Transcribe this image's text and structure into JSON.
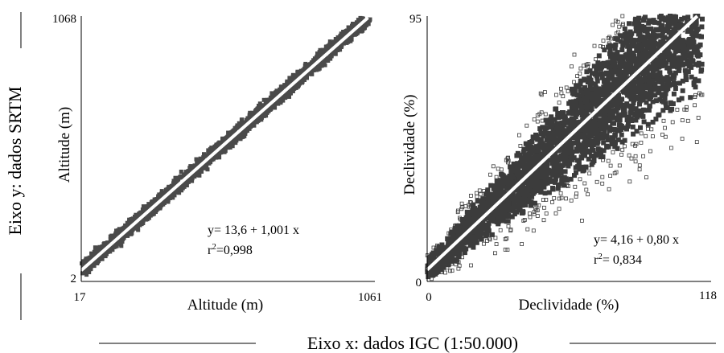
{
  "figure": {
    "y_axis_caption": "Eixo y: dados SRTM",
    "x_axis_caption": "Eixo x: dados IGC (1:50.000)"
  },
  "chart_data": [
    {
      "type": "scatter",
      "xlabel": "Altitude (m)",
      "ylabel": "Altitude (m)",
      "xlim": [
        17,
        1061
      ],
      "ylim": [
        2,
        1068
      ],
      "x_ticks": [
        "17",
        "1061"
      ],
      "y_ticks": [
        "2",
        "1068"
      ],
      "points_color": "#4a4a4a",
      "regression": {
        "intercept": 13.6,
        "slope": 1.001,
        "color": "#ffffff"
      },
      "equation": "y= 13,6 + 1,001 x",
      "r2_prefix": "r",
      "r2_sup": "2",
      "r2_value": "=0,998",
      "grid": false,
      "legend": "none"
    },
    {
      "type": "scatter",
      "xlabel": "Declividade (%)",
      "ylabel": "Declividade (%)",
      "xlim": [
        0,
        118
      ],
      "ylim": [
        0,
        95
      ],
      "x_ticks": [
        "0",
        "118"
      ],
      "y_ticks": [
        "0",
        "95"
      ],
      "points_color": "#3c3c3c",
      "regression": {
        "intercept": 4.16,
        "slope": 0.8,
        "color": "#ffffff"
      },
      "equation": "y= 4,16 + 0,80 x",
      "r2_prefix": "r",
      "r2_sup": "2",
      "r2_value": "= 0,834",
      "grid": false,
      "legend": "none"
    }
  ]
}
